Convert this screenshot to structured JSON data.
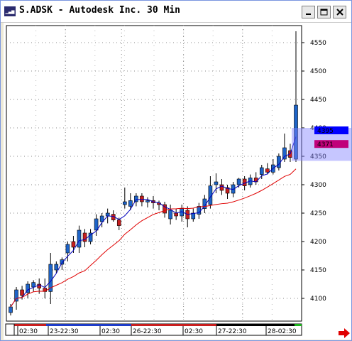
{
  "window": {
    "title": "S.ADSK - Autodesk Inc. 30 Min",
    "icon": "chart-app-icon"
  },
  "title_buttons": [
    "minimize-icon",
    "maximize-icon",
    "close-icon"
  ],
  "colors": {
    "up": "#1e64c8",
    "down": "#c81e1e",
    "ma_fast": "#0000c0",
    "ma_slow": "#e00000",
    "price_label_blue": "#0000ff",
    "price_label_red": "#c0007a",
    "highlight": "#8080ff"
  },
  "chart_data": {
    "type": "candlestick",
    "ylim": [
      4060,
      4580
    ],
    "y_ticks": [
      4100,
      4150,
      4200,
      4250,
      4300,
      4350,
      4400,
      4450,
      4500,
      4550
    ],
    "time_labels": [
      "02:30",
      "23-22:30",
      "02:30",
      "26-22:30",
      "02:30",
      "27-22:30",
      "28-02:30"
    ],
    "last_price_blue": "4395",
    "last_price_red": "4371",
    "candles": [
      [
        4075,
        4085,
        4070,
        4090
      ],
      [
        4095,
        4115,
        4080,
        4120
      ],
      [
        4115,
        4105,
        4098,
        4122
      ],
      [
        4110,
        4125,
        4100,
        4130
      ],
      [
        4120,
        4128,
        4112,
        4132
      ],
      [
        4125,
        4118,
        4108,
        4135
      ],
      [
        4118,
        4112,
        4100,
        4135
      ],
      [
        4112,
        4160,
        4090,
        4180
      ],
      [
        4150,
        4160,
        4145,
        4165
      ],
      [
        4160,
        4168,
        4150,
        4172
      ],
      [
        4180,
        4195,
        4165,
        4200
      ],
      [
        4200,
        4190,
        4180,
        4210
      ],
      [
        4190,
        4220,
        4180,
        4228
      ],
      [
        4215,
        4200,
        4190,
        4222
      ],
      [
        4200,
        4215,
        4195,
        4222
      ],
      [
        4220,
        4240,
        4210,
        4248
      ],
      [
        4235,
        4245,
        4225,
        4250
      ],
      [
        4245,
        4250,
        4232,
        4258
      ],
      [
        4248,
        4238,
        4235,
        4255
      ],
      [
        4238,
        4228,
        4220,
        4242
      ],
      [
        4265,
        4270,
        4258,
        4295
      ],
      [
        4262,
        4272,
        4255,
        4285
      ],
      [
        4270,
        4280,
        4262,
        4285
      ],
      [
        4280,
        4270,
        4262,
        4285
      ],
      [
        4270,
        4272,
        4260,
        4278
      ],
      [
        4272,
        4268,
        4258,
        4280
      ],
      [
        4268,
        4265,
        4255,
        4272
      ],
      [
        4265,
        4250,
        4242,
        4270
      ],
      [
        4240,
        4255,
        4230,
        4265
      ],
      [
        4250,
        4245,
        4238,
        4258
      ],
      [
        4245,
        4258,
        4235,
        4265
      ],
      [
        4255,
        4240,
        4225,
        4262
      ],
      [
        4240,
        4250,
        4235,
        4258
      ],
      [
        4248,
        4262,
        4240,
        4268
      ],
      [
        4258,
        4275,
        4250,
        4282
      ],
      [
        4265,
        4298,
        4258,
        4315
      ],
      [
        4300,
        4305,
        4285,
        4320
      ],
      [
        4300,
        4290,
        4282,
        4310
      ],
      [
        4295,
        4285,
        4275,
        4300
      ],
      [
        4285,
        4300,
        4278,
        4305
      ],
      [
        4300,
        4310,
        4295,
        4312
      ],
      [
        4310,
        4298,
        4290,
        4315
      ],
      [
        4300,
        4312,
        4295,
        4318
      ],
      [
        4312,
        4305,
        4300,
        4322
      ],
      [
        4318,
        4330,
        4310,
        4335
      ],
      [
        4328,
        4322,
        4318,
        4338
      ],
      [
        4322,
        4335,
        4318,
        4345
      ],
      [
        4330,
        4350,
        4325,
        4355
      ],
      [
        4345,
        4365,
        4340,
        4390
      ],
      [
        4360,
        4348,
        4340,
        4372
      ],
      [
        4345,
        4440,
        4340,
        4570
      ]
    ]
  }
}
